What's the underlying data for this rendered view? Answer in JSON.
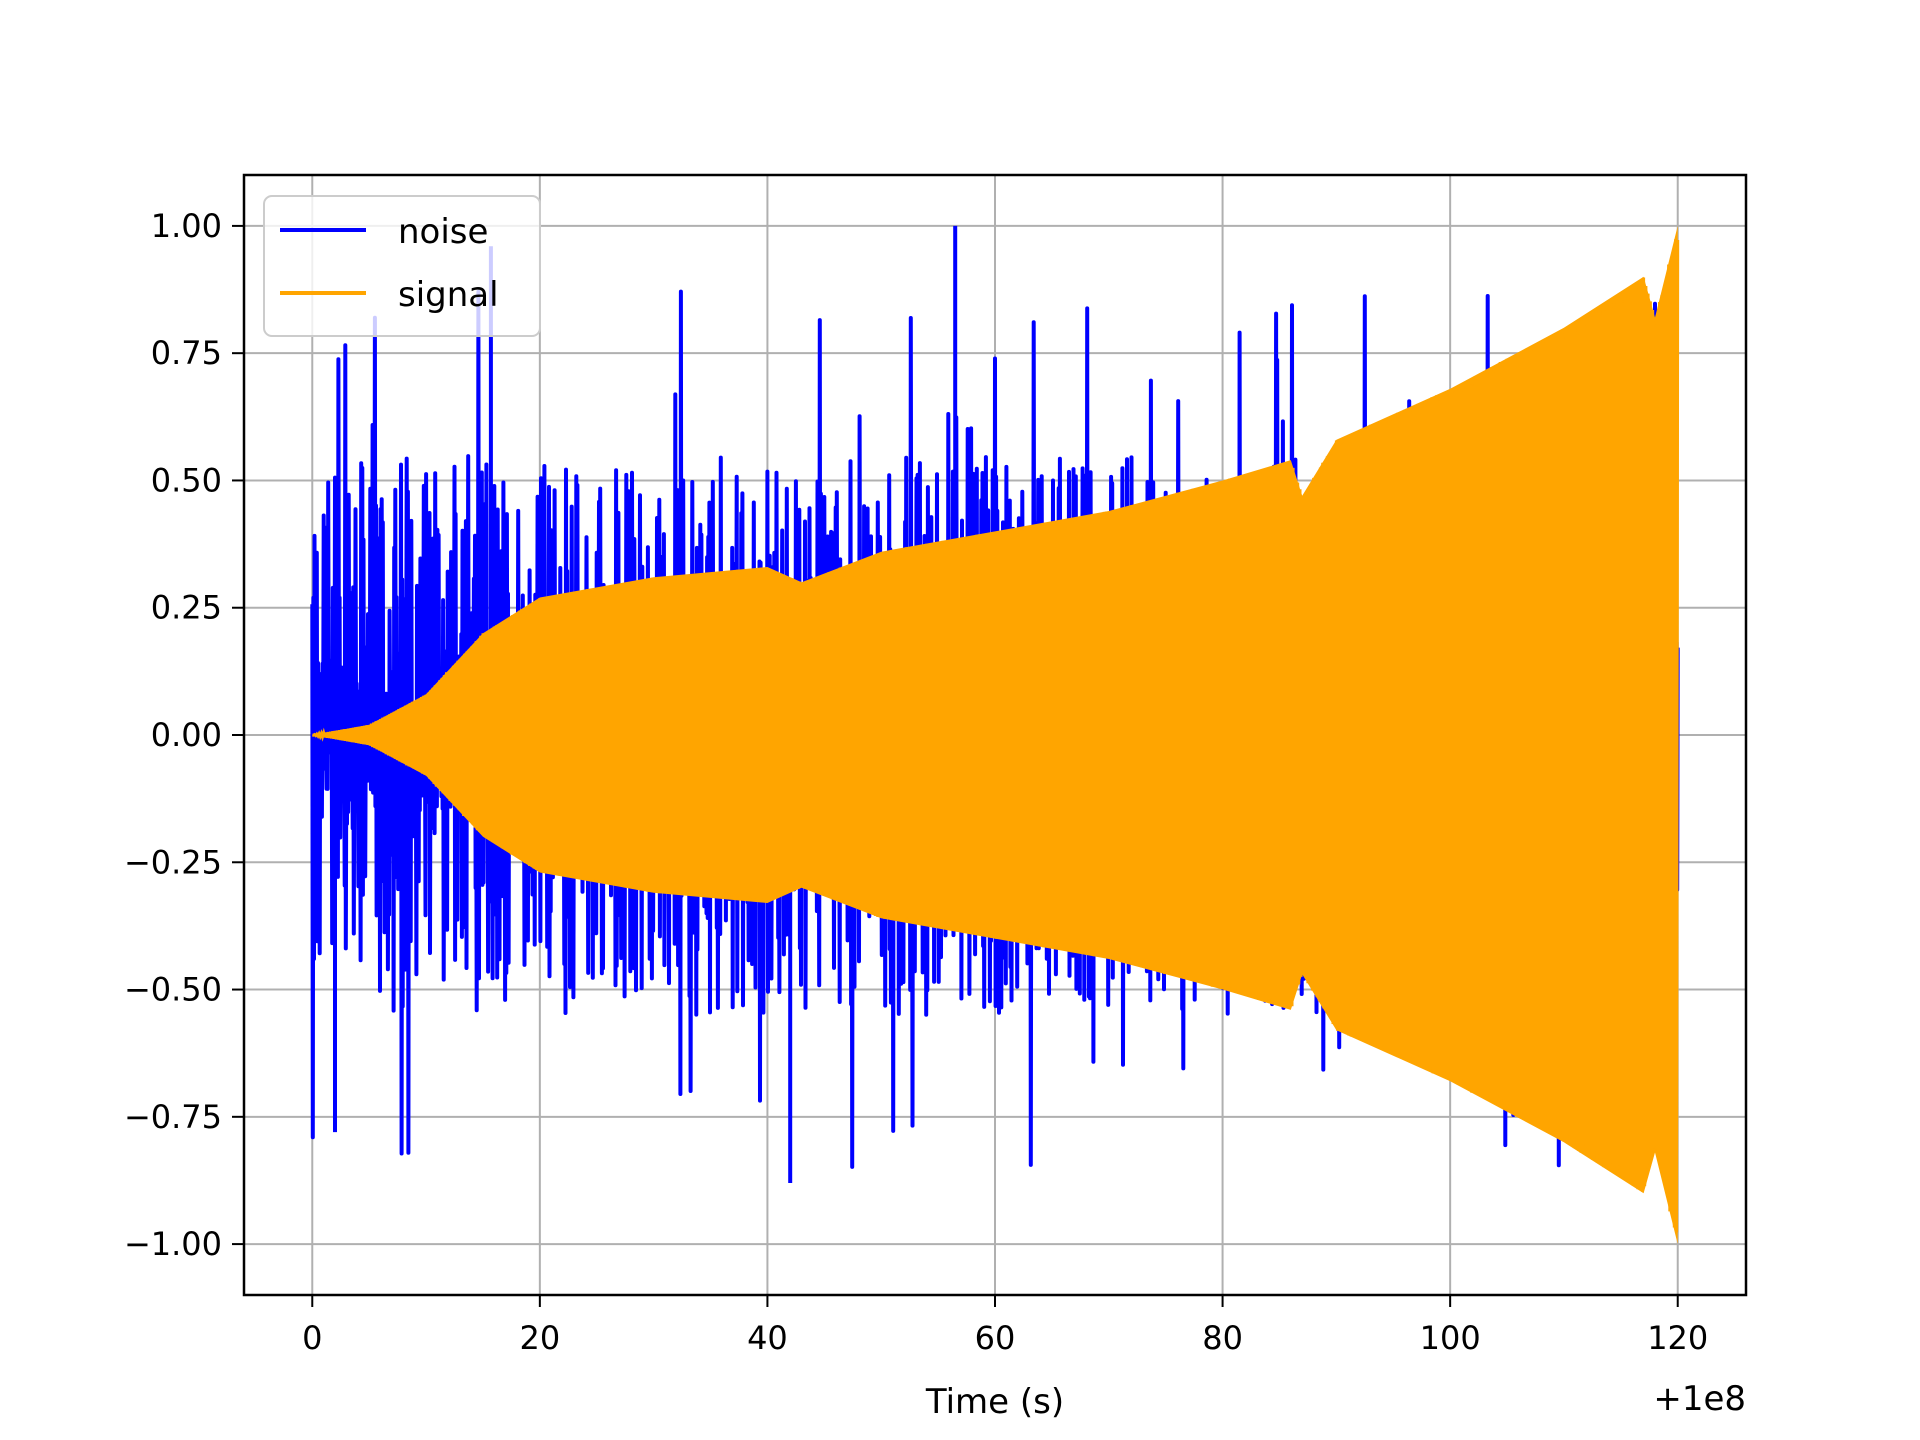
{
  "chart_data": {
    "type": "line",
    "xlabel": "Time (s)",
    "ylabel": "",
    "x_offset_label": "+1e8",
    "xlim": [
      -6,
      126
    ],
    "ylim": [
      -1.1,
      1.1
    ],
    "x_ticks": [
      0,
      20,
      40,
      60,
      80,
      100,
      120
    ],
    "x_tick_labels": [
      "0",
      "20",
      "40",
      "60",
      "80",
      "100",
      "120"
    ],
    "y_ticks": [
      -1.0,
      -0.75,
      -0.5,
      -0.25,
      0.0,
      0.25,
      0.5,
      0.75,
      1.0
    ],
    "y_tick_labels": [
      "−1.00",
      "−0.75",
      "−0.50",
      "−0.25",
      "0.00",
      "0.25",
      "0.50",
      "0.75",
      "1.00"
    ],
    "grid": true,
    "legend_position": "upper-left",
    "series": [
      {
        "name": "noise",
        "color": "#0000ff",
        "description_of_values": "dense random noise between roughly -0.9 and 1.0 over t = 0..120",
        "x_range": [
          0,
          120
        ],
        "typical_peak_positive": 0.55,
        "typical_peak_negative": -0.55,
        "max": 1.0,
        "min": -0.88
      },
      {
        "name": "signal",
        "color": "#ffa500",
        "description_of_values": "chirp oscillation whose envelope grows from 0 at t=0 to 1.0 at t=120",
        "envelope_points": [
          {
            "x": 0,
            "y": 0.0
          },
          {
            "x": 5,
            "y": 0.02
          },
          {
            "x": 10,
            "y": 0.08
          },
          {
            "x": 15,
            "y": 0.2
          },
          {
            "x": 20,
            "y": 0.27
          },
          {
            "x": 30,
            "y": 0.31
          },
          {
            "x": 40,
            "y": 0.33
          },
          {
            "x": 43,
            "y": 0.3
          },
          {
            "x": 50,
            "y": 0.36
          },
          {
            "x": 60,
            "y": 0.4
          },
          {
            "x": 70,
            "y": 0.44
          },
          {
            "x": 80,
            "y": 0.5
          },
          {
            "x": 86,
            "y": 0.54
          },
          {
            "x": 87,
            "y": 0.47
          },
          {
            "x": 90,
            "y": 0.58
          },
          {
            "x": 100,
            "y": 0.68
          },
          {
            "x": 110,
            "y": 0.8
          },
          {
            "x": 117,
            "y": 0.9
          },
          {
            "x": 118,
            "y": 0.82
          },
          {
            "x": 120,
            "y": 1.0
          }
        ]
      }
    ]
  }
}
